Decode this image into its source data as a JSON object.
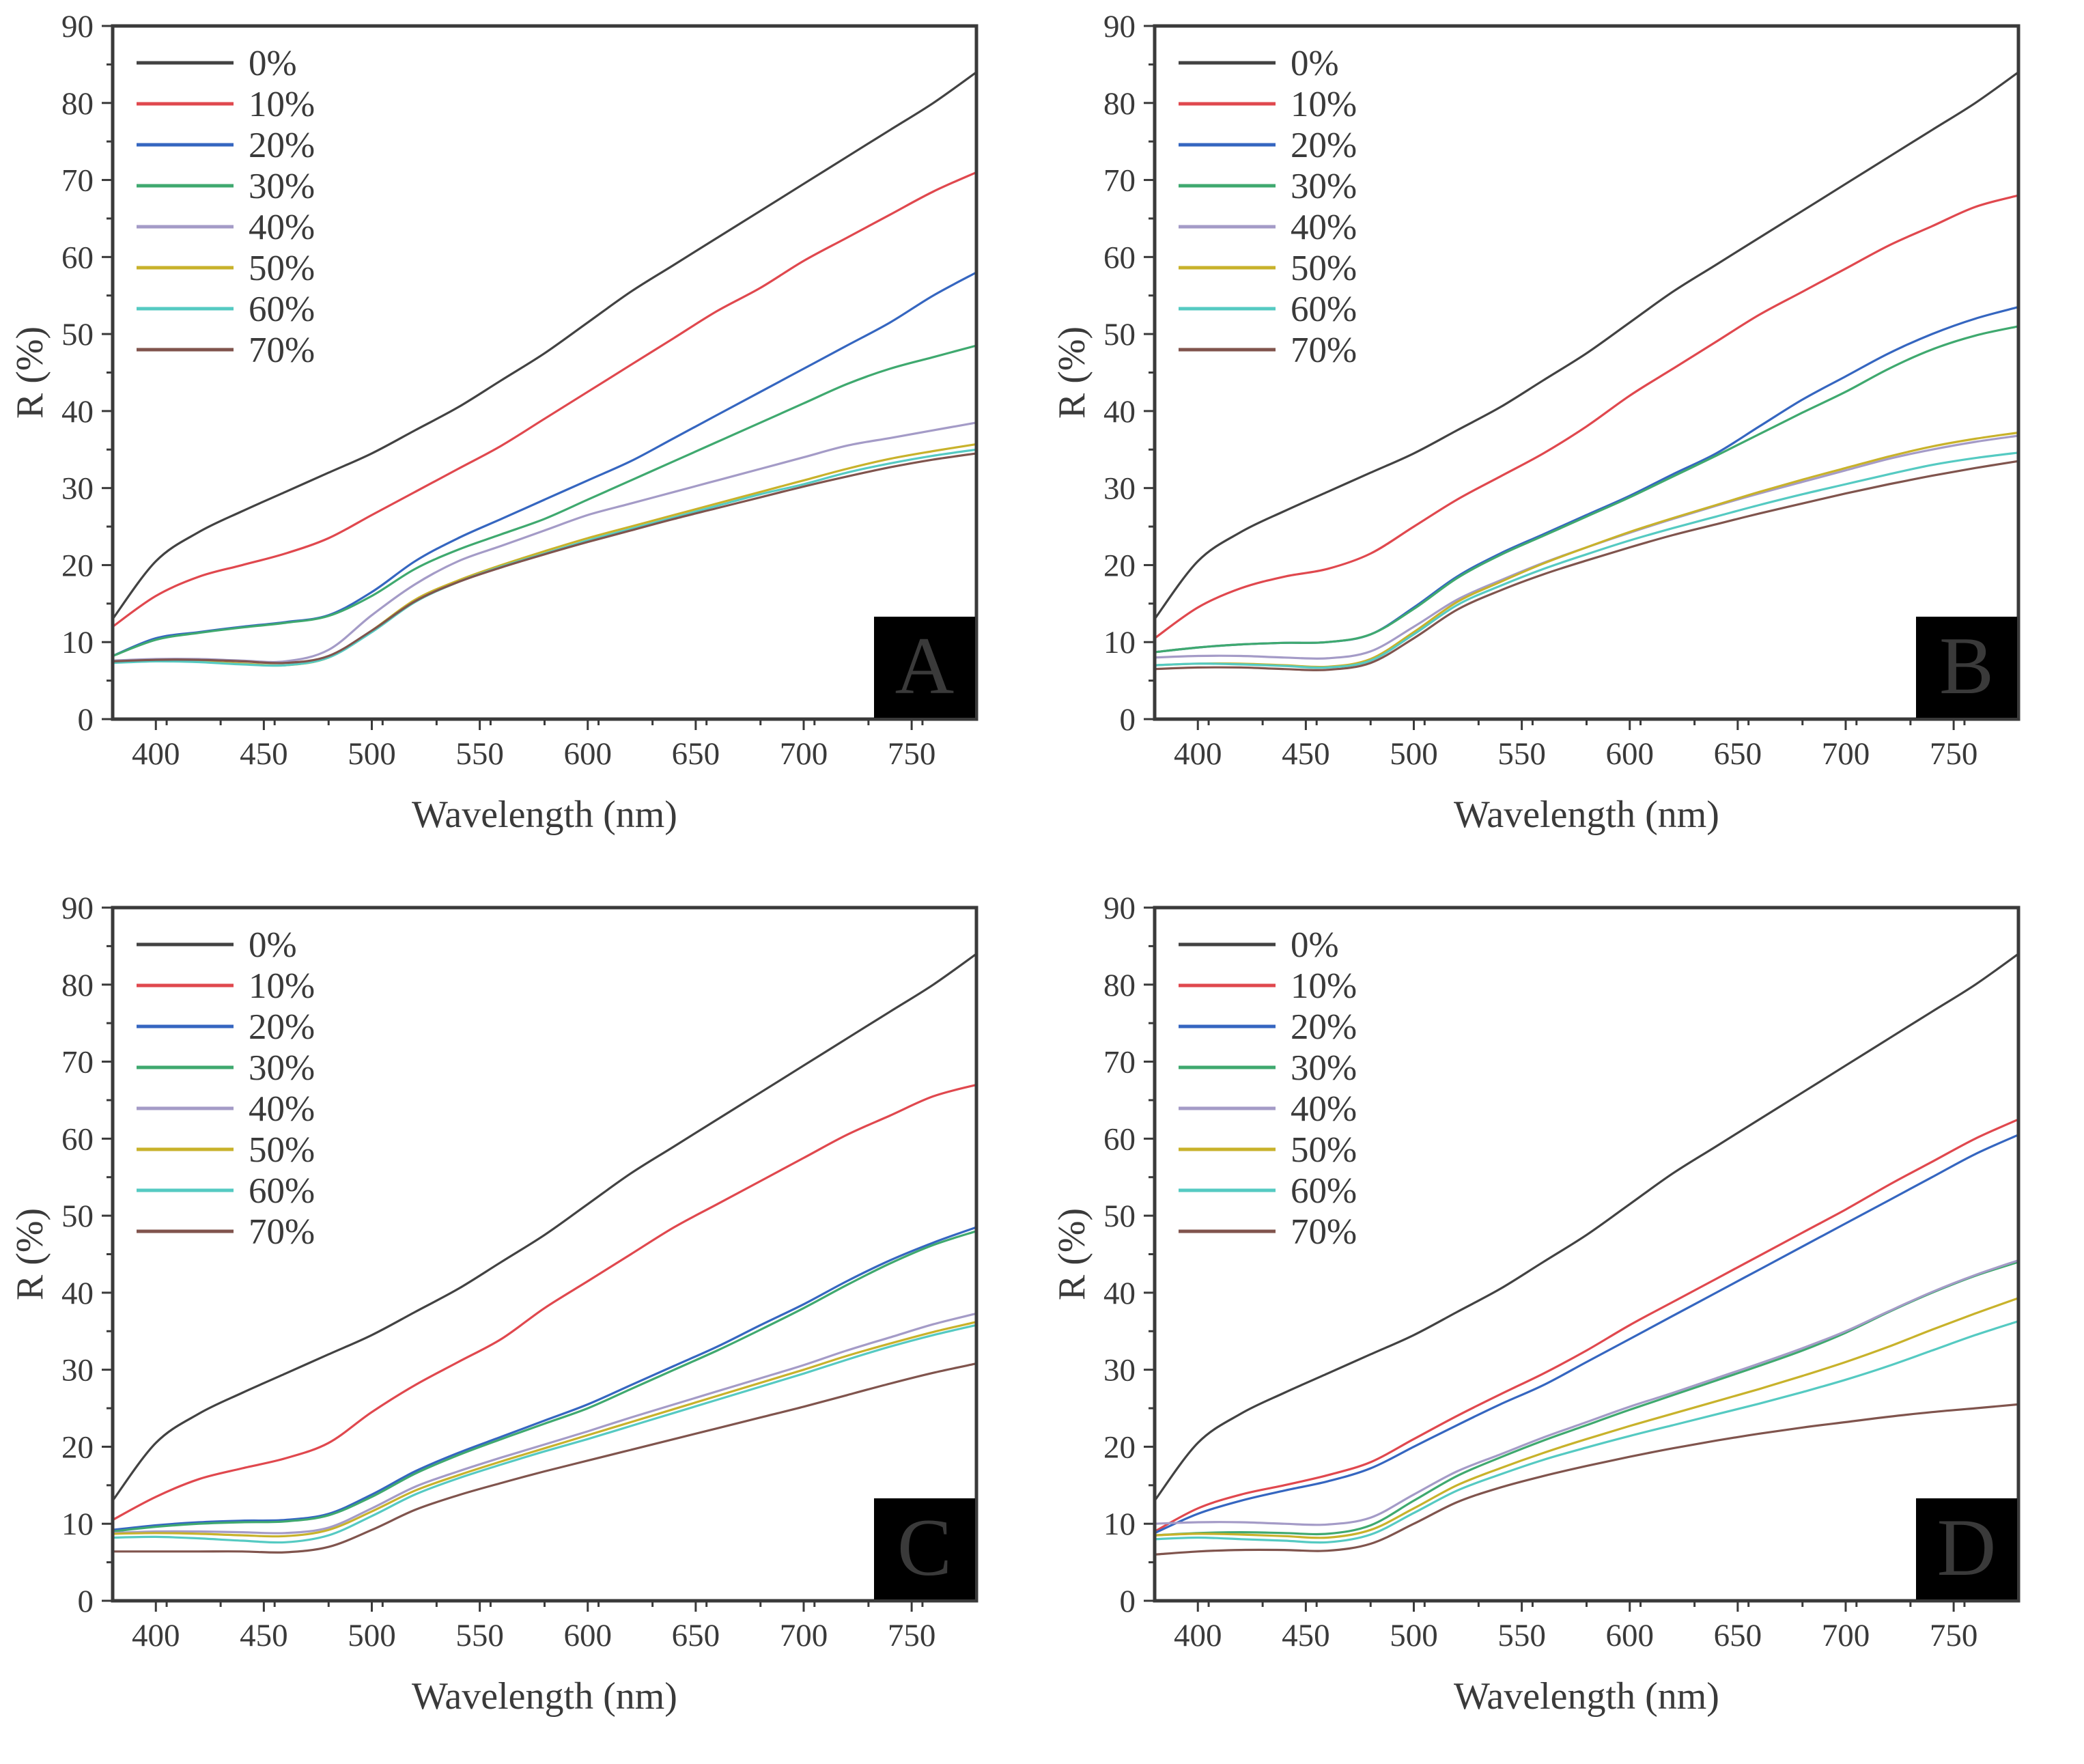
{
  "chart_data": {
    "type": "line",
    "layout": "2x2-panel-grid",
    "xlabel": "Wavelength (nm)",
    "ylabel": "R (%)",
    "xlim": [
      380,
      780
    ],
    "ylim": [
      0,
      90
    ],
    "xticks": [
      400,
      450,
      500,
      550,
      600,
      650,
      700,
      750
    ],
    "yticks": [
      0,
      10,
      20,
      30,
      40,
      50,
      60,
      70,
      80,
      90
    ],
    "x_minor_step": 25,
    "y_minor_step": 5,
    "grid": false,
    "legend_position": "top-left-inside",
    "legend_labels": [
      "0%",
      "10%",
      "20%",
      "30%",
      "40%",
      "50%",
      "60%",
      "70%"
    ],
    "series_colors": {
      "0%": "#424242",
      "10%": "#e0484e",
      "20%": "#3566c0",
      "30%": "#3fa96f",
      "40%": "#a49bc7",
      "50%": "#c8b22b",
      "60%": "#55cac2",
      "70%": "#80544d"
    },
    "axis_color": "#3a3a3a",
    "panel_label_box_color": "#000000",
    "panel_label_text_color": "#ffffff",
    "x": [
      380,
      400,
      420,
      440,
      460,
      480,
      500,
      520,
      540,
      560,
      580,
      600,
      620,
      640,
      660,
      680,
      700,
      720,
      740,
      760,
      780
    ],
    "panels": [
      {
        "label": "A",
        "series": [
          {
            "name": "0%",
            "values": [
              13,
              20.5,
              24.3,
              27,
              29.5,
              32,
              34.5,
              37.5,
              40.5,
              44,
              47.5,
              51.5,
              55.5,
              59,
              62.5,
              66,
              69.5,
              73,
              76.5,
              80,
              84
            ]
          },
          {
            "name": "10%",
            "values": [
              12,
              16,
              18.5,
              20,
              21.5,
              23.5,
              26.5,
              29.5,
              32.5,
              35.5,
              39,
              42.5,
              46,
              49.5,
              53,
              56,
              59.5,
              62.5,
              65.5,
              68.5,
              71
            ]
          },
          {
            "name": "20%",
            "values": [
              8.2,
              10.5,
              11.3,
              12,
              12.6,
              13.5,
              16.5,
              20.5,
              23.5,
              26,
              28.5,
              31,
              33.5,
              36.5,
              39.5,
              42.5,
              45.5,
              48.5,
              51.5,
              55,
              58
            ]
          },
          {
            "name": "30%",
            "values": [
              8.2,
              10.3,
              11.2,
              11.9,
              12.5,
              13.4,
              16,
              19.5,
              22,
              24,
              26,
              28.5,
              31,
              33.5,
              36,
              38.5,
              41,
              43.5,
              45.5,
              47,
              48.5
            ]
          },
          {
            "name": "40%",
            "values": [
              7.6,
              7.8,
              7.8,
              7.6,
              7.5,
              9,
              13.5,
              17.5,
              20.5,
              22.5,
              24.5,
              26.5,
              28,
              29.5,
              31,
              32.5,
              34,
              35.5,
              36.5,
              37.5,
              38.5
            ]
          },
          {
            "name": "50%",
            "values": [
              7.5,
              7.6,
              7.5,
              7.2,
              7,
              8,
              11.5,
              15.5,
              18,
              20,
              21.8,
              23.5,
              25,
              26.5,
              28,
              29.5,
              31,
              32.5,
              33.8,
              34.8,
              35.7
            ]
          },
          {
            "name": "60%",
            "values": [
              7.3,
              7.5,
              7.4,
              7.1,
              7,
              8,
              11.3,
              15.2,
              17.8,
              19.8,
              21.5,
              23.2,
              24.7,
              26.2,
              27.7,
              29.2,
              30.5,
              32,
              33.2,
              34.2,
              35
            ]
          },
          {
            "name": "70%",
            "values": [
              7.5,
              7.7,
              7.7,
              7.5,
              7.3,
              8.2,
              11.5,
              15.3,
              17.8,
              19.7,
              21.4,
              23,
              24.5,
              26,
              27.4,
              28.8,
              30.2,
              31.5,
              32.7,
              33.7,
              34.5
            ]
          }
        ]
      },
      {
        "label": "B",
        "series": [
          {
            "name": "0%",
            "values": [
              13,
              20.5,
              24.3,
              27,
              29.5,
              32,
              34.5,
              37.5,
              40.5,
              44,
              47.5,
              51.5,
              55.5,
              59,
              62.5,
              66,
              69.5,
              73,
              76.5,
              80,
              84
            ]
          },
          {
            "name": "10%",
            "values": [
              10.5,
              14.5,
              17,
              18.5,
              19.5,
              21.5,
              25,
              28.5,
              31.5,
              34.5,
              38,
              42,
              45.5,
              49,
              52.5,
              55.5,
              58.5,
              61.5,
              64,
              66.5,
              68
            ]
          },
          {
            "name": "20%",
            "values": [
              8.7,
              9.3,
              9.7,
              9.9,
              10,
              11,
              14.5,
              18.5,
              21.5,
              24,
              26.5,
              29,
              31.8,
              34.5,
              38,
              41.5,
              44.5,
              47.5,
              50,
              52,
              53.5
            ]
          },
          {
            "name": "30%",
            "values": [
              8.7,
              9.3,
              9.7,
              9.9,
              10,
              11,
              14.3,
              18.3,
              21.3,
              23.8,
              26.3,
              28.8,
              31.5,
              34.2,
              37,
              39.8,
              42.5,
              45.5,
              48,
              49.8,
              51
            ]
          },
          {
            "name": "40%",
            "values": [
              8,
              8.2,
              8.2,
              8,
              7.9,
              8.8,
              12,
              15.5,
              18,
              20.3,
              22.3,
              24.2,
              26,
              27.7,
              29.3,
              30.8,
              32.3,
              33.8,
              35,
              36,
              36.8
            ]
          },
          {
            "name": "50%",
            "values": [
              7,
              7.2,
              7.2,
              7,
              6.8,
              7.8,
              11.3,
              15.2,
              17.8,
              20.2,
              22.3,
              24.3,
              26.1,
              27.8,
              29.5,
              31.1,
              32.6,
              34.1,
              35.4,
              36.4,
              37.2
            ]
          },
          {
            "name": "60%",
            "values": [
              7,
              7.2,
              7.1,
              6.9,
              6.7,
              7.6,
              11,
              14.8,
              17.3,
              19.5,
              21.4,
              23.2,
              24.8,
              26.3,
              27.8,
              29.2,
              30.5,
              31.8,
              33,
              33.9,
              34.6
            ]
          },
          {
            "name": "70%",
            "values": [
              6.5,
              6.7,
              6.7,
              6.5,
              6.4,
              7.3,
              10.5,
              14.2,
              16.7,
              18.8,
              20.6,
              22.3,
              23.9,
              25.3,
              26.7,
              28,
              29.3,
              30.5,
              31.6,
              32.6,
              33.5
            ]
          }
        ]
      },
      {
        "label": "C",
        "series": [
          {
            "name": "0%",
            "values": [
              13,
              20.5,
              24.3,
              27,
              29.5,
              32,
              34.5,
              37.5,
              40.5,
              44,
              47.5,
              51.5,
              55.5,
              59,
              62.5,
              66,
              69.5,
              73,
              76.5,
              80,
              84
            ]
          },
          {
            "name": "10%",
            "values": [
              10.5,
              13.5,
              15.8,
              17.2,
              18.5,
              20.5,
              24.5,
              28,
              31,
              34,
              38,
              41.5,
              45,
              48.5,
              51.5,
              54.5,
              57.5,
              60.5,
              63,
              65.5,
              67
            ]
          },
          {
            "name": "20%",
            "values": [
              9.2,
              9.8,
              10.2,
              10.4,
              10.5,
              11.3,
              13.8,
              16.8,
              19.2,
              21.3,
              23.4,
              25.5,
              28,
              30.5,
              33,
              35.8,
              38.5,
              41.5,
              44.2,
              46.5,
              48.5
            ]
          },
          {
            "name": "30%",
            "values": [
              9,
              9.6,
              10,
              10.2,
              10.3,
              11.1,
              13.5,
              16.5,
              18.9,
              21,
              23,
              25,
              27.5,
              30,
              32.5,
              35.2,
              38,
              41,
              43.8,
              46.2,
              48
            ]
          },
          {
            "name": "40%",
            "values": [
              8.8,
              9,
              9,
              8.9,
              8.8,
              9.5,
              12,
              14.8,
              16.8,
              18.6,
              20.3,
              22,
              23.8,
              25.5,
              27.2,
              28.9,
              30.6,
              32.5,
              34.2,
              35.9,
              37.3
            ]
          },
          {
            "name": "50%",
            "values": [
              8.7,
              8.8,
              8.7,
              8.5,
              8.4,
              9.2,
              11.6,
              14.3,
              16.3,
              18.1,
              19.8,
              21.5,
              23.2,
              24.9,
              26.6,
              28.3,
              30,
              31.8,
              33.4,
              34.9,
              36.2
            ]
          },
          {
            "name": "60%",
            "values": [
              8.2,
              8.3,
              8.1,
              7.8,
              7.6,
              8.5,
              11,
              13.8,
              15.9,
              17.7,
              19.4,
              21,
              22.7,
              24.4,
              26.1,
              27.8,
              29.5,
              31.3,
              33,
              34.5,
              35.8
            ]
          },
          {
            "name": "70%",
            "values": [
              6.4,
              6.4,
              6.4,
              6.4,
              6.3,
              7,
              9.2,
              11.8,
              13.7,
              15.3,
              16.8,
              18.2,
              19.6,
              21,
              22.4,
              23.8,
              25.2,
              26.7,
              28.2,
              29.6,
              30.8
            ]
          }
        ]
      },
      {
        "label": "D",
        "series": [
          {
            "name": "0%",
            "values": [
              13,
              20.5,
              24.3,
              27,
              29.5,
              32,
              34.5,
              37.5,
              40.5,
              44,
              47.5,
              51.5,
              55.5,
              59,
              62.5,
              66,
              69.5,
              73,
              76.5,
              80,
              84
            ]
          },
          {
            "name": "10%",
            "values": [
              9,
              12,
              13.8,
              15,
              16.3,
              18,
              21,
              24,
              26.8,
              29.5,
              32.5,
              35.8,
              38.8,
              41.8,
              44.8,
              47.8,
              50.8,
              54,
              57,
              60,
              62.5
            ]
          },
          {
            "name": "20%",
            "values": [
              8.8,
              11.3,
              13,
              14.3,
              15.5,
              17.2,
              20,
              22.8,
              25.5,
              28,
              31,
              34,
              37,
              40,
              43,
              46,
              49,
              52,
              55,
              58,
              60.5
            ]
          },
          {
            "name": "30%",
            "values": [
              8.5,
              8.8,
              8.9,
              8.8,
              8.7,
              9.8,
              13,
              16.2,
              18.6,
              20.8,
              22.8,
              24.8,
              26.7,
              28.6,
              30.5,
              32.5,
              34.8,
              37.5,
              40,
              42.2,
              44
            ]
          },
          {
            "name": "40%",
            "values": [
              10,
              10.2,
              10.2,
              10,
              9.9,
              10.8,
              13.8,
              16.8,
              19,
              21.2,
              23.2,
              25.2,
              27,
              28.9,
              30.8,
              32.8,
              35,
              37.6,
              40.1,
              42.3,
              44.2
            ]
          },
          {
            "name": "50%",
            "values": [
              8.5,
              8.7,
              8.6,
              8.4,
              8.2,
              9.2,
              12,
              15,
              17.2,
              19.2,
              21,
              22.7,
              24.3,
              25.9,
              27.5,
              29.2,
              31,
              33,
              35.2,
              37.3,
              39.3
            ]
          },
          {
            "name": "60%",
            "values": [
              8,
              8.2,
              8,
              7.8,
              7.6,
              8.6,
              11.4,
              14.3,
              16.4,
              18.3,
              19.9,
              21.4,
              22.8,
              24.2,
              25.6,
              27.1,
              28.7,
              30.5,
              32.5,
              34.5,
              36.3
            ]
          },
          {
            "name": "70%",
            "values": [
              6,
              6.4,
              6.6,
              6.6,
              6.5,
              7.4,
              10,
              12.8,
              14.7,
              16.2,
              17.5,
              18.7,
              19.8,
              20.8,
              21.7,
              22.5,
              23.2,
              23.9,
              24.5,
              25,
              25.5
            ]
          }
        ]
      }
    ]
  }
}
